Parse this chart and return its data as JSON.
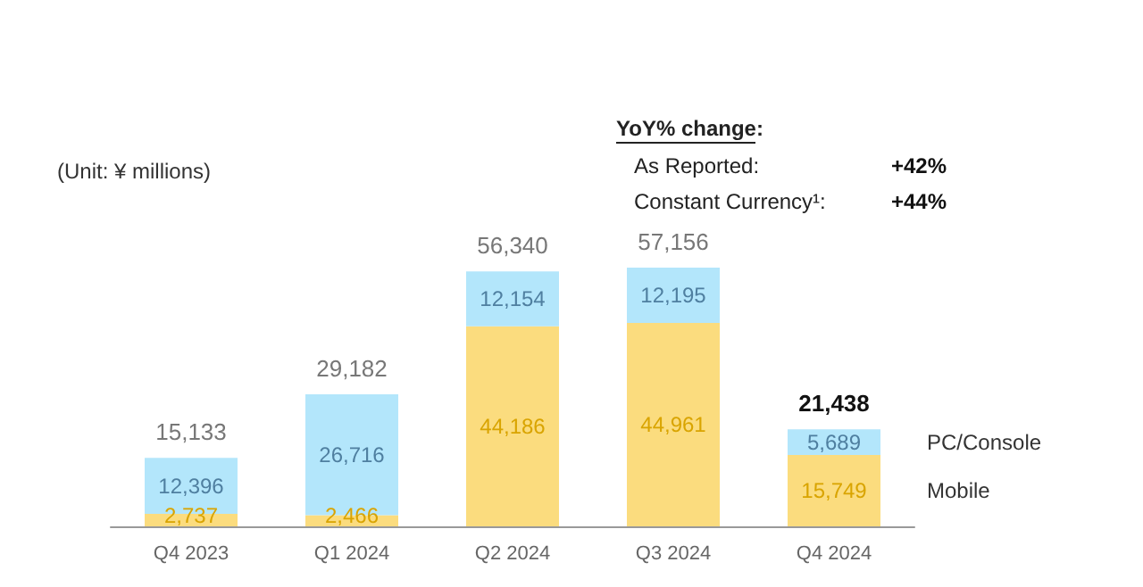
{
  "chart_data": {
    "type": "bar",
    "stacked": true,
    "categories": [
      "Q4 2023",
      "Q1 2024",
      "Q2 2024",
      "Q3 2024",
      "Q4 2024"
    ],
    "series": [
      {
        "name": "Mobile",
        "color": "#fbdc7e",
        "values": [
          2737,
          2466,
          44186,
          44961,
          15749
        ],
        "value_labels": [
          "2,737",
          "2,466",
          "44,186",
          "44,961",
          "15,749"
        ]
      },
      {
        "name": "PC/Console",
        "color": "#b3e6fb",
        "values": [
          12396,
          26716,
          12154,
          12195,
          5689
        ],
        "value_labels": [
          "12,396",
          "26,716",
          "12,154",
          "12,195",
          "5,689"
        ]
      }
    ],
    "totals": [
      "15,133",
      "29,182",
      "56,340",
      "57,156",
      "21,438"
    ],
    "annotations": [
      "(Unit: ¥ millions)",
      "YoY% change:",
      "As Reported:",
      "+42%",
      "Constant Currency¹:",
      "+44%"
    ],
    "legend": false
  }
}
